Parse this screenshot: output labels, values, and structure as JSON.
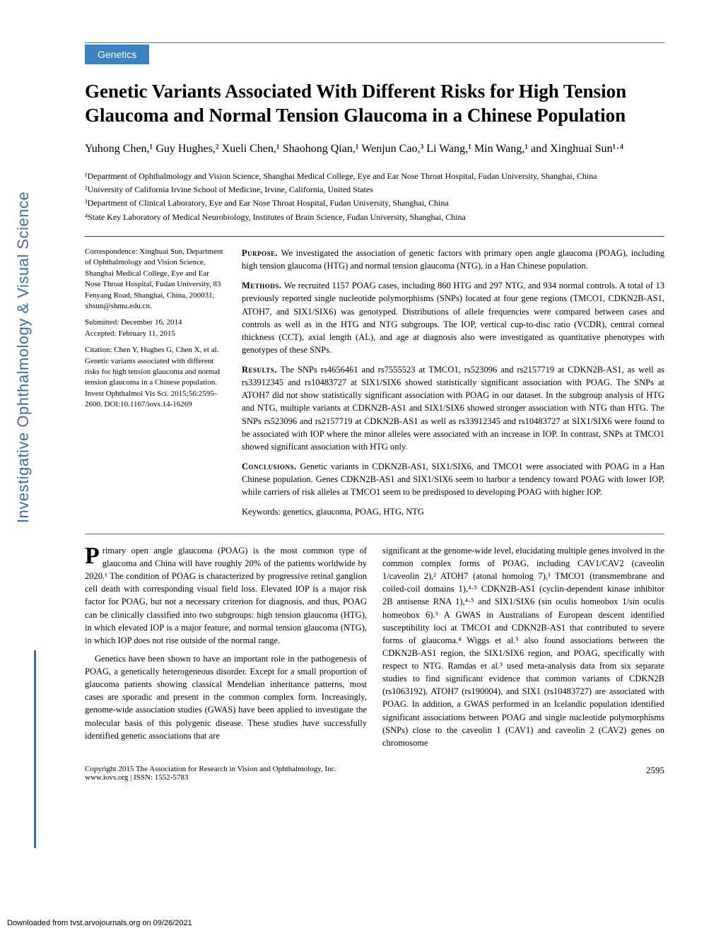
{
  "section_badge": "Genetics",
  "title": "Genetic Variants Associated With Different Risks for High Tension Glaucoma and Normal Tension Glaucoma in a Chinese Population",
  "authors_html": "Yuhong Chen,¹ Guy Hughes,² Xueli Chen,¹ Shaohong Qian,¹ Wenjun Cao,³ Li Wang,¹ Min Wang,¹ and Xinghuai Sun¹·⁴",
  "affiliations": [
    "¹Department of Ophthalmology and Vision Science, Shanghai Medical College, Eye and Ear Nose Throat Hospital, Fudan University, Shanghai, China",
    "²University of California Irvine School of Medicine, Irvine, California, United States",
    "³Department of Clinical Laboratory, Eye and Ear Nose Throat Hospital, Fudan University, Shanghai, China",
    "⁴State Key Laboratory of Medical Neurobiology, Institutes of Brain Science, Fudan University, Shanghai, China"
  ],
  "correspondence": "Correspondence: Xinghuai Sun, Department of Ophthalmology and Vision Science, Shanghai Medical College, Eye and Ear Nose Throat Hospital, Fudan University, 83 Fenyang Road, Shanghai, China, 200031;",
  "email": "xhsun@shmu.edu.cn.",
  "submitted": "Submitted: December 16, 2014",
  "accepted": "Accepted: February 11, 2015",
  "citation": "Citation: Chen Y, Hughes G, Chen X, et al. Genetic variants associated with different risks for high tension glaucoma and normal tension glaucoma in a Chinese population. Invest Ophthalmol Vis Sci. 2015;56:2595–2600. DOI:10.1167/iovs.14-16269",
  "abstract": {
    "purpose": "We investigated the association of genetic factors with primary open angle glaucoma (POAG), including high tension glaucoma (HTG) and normal tension glaucoma (NTG), in a Han Chinese population.",
    "methods": "We recruited 1157 POAG cases, including 860 HTG and 297 NTG, and 934 normal controls. A total of 13 previously reported single nucleotide polymorphisms (SNPs) located at four gene regions (TMCO1, CDKN2B-AS1, ATOH7, and SIX1/SIX6) was genotyped. Distributions of allele frequencies were compared between cases and controls as well as in the HTG and NTG subgroups. The IOP, vertical cup-to-disc ratio (VCDR), central corneal thickness (CCT), axial length (AL), and age at diagnosis also were investigated as quantitative phenotypes with genotypes of these SNPs.",
    "results": "The SNPs rs4656461 and rs7555523 at TMCO1, rs523096 and rs2157719 at CDKN2B-AS1, as well as rs33912345 and rs10483727 at SIX1/SIX6 showed statistically significant association with POAG. The SNPs at ATOH7 did not show statistically significant association with POAG in our dataset. In the subgroup analysis of HTG and NTG, multiple variants at CDKN2B-AS1 and SIX1/SIX6 showed stronger association with NTG than HTG. The SNPs rs523096 and rs2157719 at CDKN2B-AS1 as well as rs33912345 and rs10483727 at SIX1/SIX6 were found to be associated with IOP where the minor alleles were associated with an increase in IOP. In contrast, SNPs at TMCO1 showed significant association with HTG only.",
    "conclusions": "Genetic variants in CDKN2B-AS1, SIX1/SIX6, and TMCO1 were associated with POAG in a Han Chinese population. Genes CDKN2B-AS1 and SIX1/SIX6 seem to harbor a tendency toward POAG with lower IOP, while carriers of risk alleles at TMCO1 seem to be predisposed to developing POAG with higher IOP.",
    "keywords": "Keywords: genetics, glaucoma, POAG, HTG, NTG"
  },
  "body": {
    "col1_p1": "rimary open angle glaucoma (POAG) is the most common type of glaucoma and China will have roughly 20% of the patients worldwide by 2020.¹ The condition of POAG is characterized by progressive retinal ganglion cell death with corresponding visual field loss. Elevated IOP is a major risk factor for POAG, but not a necessary criterion for diagnosis, and thus, POAG can be clinically classified into two subgroups: high tension glaucoma (HTG), in which elevated IOP is a major feature, and normal tension glaucoma (NTG), in which IOP does not rise outside of the normal range.",
    "col1_p2": "Genetics have been shown to have an important role in the pathogenesis of POAG, a genetically heterogeneous disorder. Except for a small proportion of glaucoma patients showing classical Mendelian inheritance patterns, most cases are sporadic and present in the common complex form. Increasingly, genome-wide association studies (GWAS) have been applied to investigate the molecular basis of this polygenic disease. These studies have successfully identified genetic associations that are",
    "col2_p1": "significant at the genome-wide level, elucidating multiple genes involved in the common complex forms of POAG, including CAV1/CAV2 (caveolin 1/caveolin 2),² ATOH7 (atonal homolog 7),³ TMCO1 (transmembrane and coiled-coil domains 1),⁴·⁵ CDKN2B-AS1 (cyclin-dependent kinase inhibitor 2B antisense RNA 1),⁴·⁵ and SIX1/SIX6 (sin oculis homeobox 1/sin oculis homeobox 6).⁵ A GWAS in Australians of European descent identified susceptibility loci at TMCO1 and CDKN2B-AS1 that contributed to severe forms of glaucoma.⁴ Wiggs et al.⁵ also found associations between the CDKN2B-AS1 region, the SIX1/SIX6 region, and POAG, specifically with respect to NTG. Ramdas et al.³ used meta-analysis data from six separate studies to find significant evidence that common variants of CDKN2B (rs1063192), ATOH7 (rs190004), and SIX1 (rs10483727) are associated with POAG. In addition, a GWAS performed in an Icelandic population identified significant associations between POAG and single nucleotide polymorphisms (SNPs) close to the caveolin 1 (CAV1) and caveolin 2 (CAV2) genes on chromosome"
  },
  "footer": {
    "copyright": "Copyright 2015 The Association for Research in Vision and Ophthalmology, Inc.",
    "url": "www.iovs.org | ISSN: 1552-5783",
    "page": "2595"
  },
  "sidebar_text": "Investigative Ophthalmology & Visual Science",
  "download_note": "Downloaded from tvst.arvojournals.org on 09/26/2021"
}
